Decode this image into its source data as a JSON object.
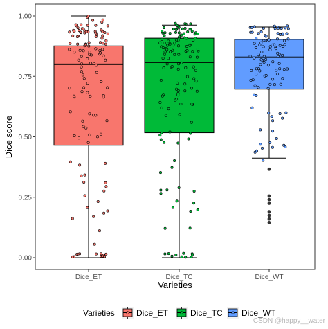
{
  "chart_data": {
    "type": "box",
    "xlabel": "Varieties",
    "ylabel": "Dice score",
    "ylim": [
      0,
      1
    ],
    "yticks": [
      "0.00",
      "0.25",
      "0.50",
      "0.75",
      "1.00"
    ],
    "categories": [
      "Dice_ET",
      "Dice_TC",
      "Dice_WT"
    ],
    "colors": [
      "#F8766D",
      "#00BA38",
      "#619CFF"
    ],
    "boxes": [
      {
        "name": "Dice_ET",
        "q1": 0.465,
        "median": 0.8,
        "q3": 0.876,
        "whisker_low": 0.0,
        "whisker_high": 1.0,
        "outliers": []
      },
      {
        "name": "Dice_TC",
        "q1": 0.517,
        "median": 0.808,
        "q3": 0.908,
        "whisker_low": 0.0,
        "whisker_high": 0.962,
        "outliers": []
      },
      {
        "name": "Dice_WT",
        "q1": 0.697,
        "median": 0.829,
        "q3": 0.903,
        "whisker_low": 0.412,
        "whisker_high": 0.954,
        "outliers": [
          0.366,
          0.255,
          0.24,
          0.225,
          0.19,
          0.175,
          0.16,
          0.145
        ]
      }
    ],
    "legend": {
      "title": "Varieties",
      "position": "bottom",
      "entries": [
        "Dice_ET",
        "Dice_TC",
        "Dice_WT"
      ]
    },
    "watermark": "CSDN @happy__water"
  }
}
